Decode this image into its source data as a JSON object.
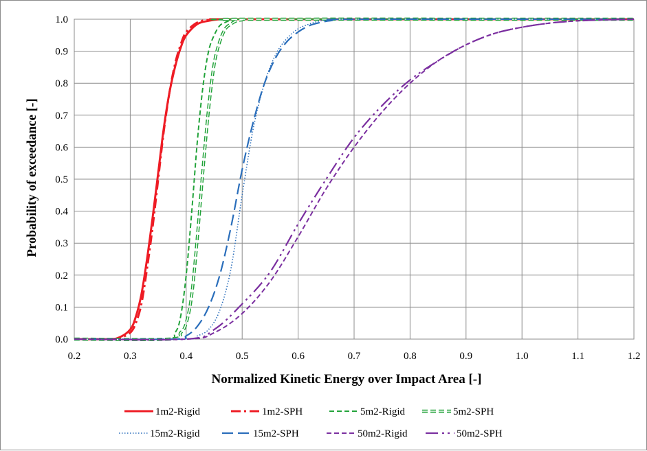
{
  "chart_data": {
    "type": "line",
    "title": "",
    "xlabel": "Normalized Kinetic Energy over Impact Area [-]",
    "ylabel": "Probability of exceedance [-]",
    "xlim": [
      0.2,
      1.2
    ],
    "ylim": [
      0.0,
      1.0
    ],
    "x_ticks": [
      "0.2",
      "0.3",
      "0.4",
      "0.5",
      "0.6",
      "0.7",
      "0.8",
      "0.9",
      "1.0",
      "1.1",
      "1.2"
    ],
    "y_ticks": [
      "0.0",
      "0.1",
      "0.2",
      "0.3",
      "0.4",
      "0.5",
      "0.6",
      "0.7",
      "0.8",
      "0.9",
      "1.0"
    ],
    "grid": true,
    "legend_position": "bottom",
    "series": [
      {
        "name": "1m2-Rigid",
        "color": "#ee1c25",
        "style": "solid",
        "x": [
          0.2,
          0.26,
          0.28,
          0.3,
          0.31,
          0.32,
          0.33,
          0.34,
          0.35,
          0.36,
          0.37,
          0.38,
          0.39,
          0.4,
          0.42,
          0.44,
          0.46,
          0.48,
          0.5,
          1.2
        ],
        "y": [
          0.0,
          0.0,
          0.005,
          0.03,
          0.07,
          0.14,
          0.25,
          0.38,
          0.52,
          0.66,
          0.77,
          0.85,
          0.91,
          0.95,
          0.985,
          0.995,
          1.0,
          1.0,
          1.0,
          1.0
        ]
      },
      {
        "name": "1m2-SPH",
        "color": "#ee1c25",
        "style": "dashdot",
        "x": [
          0.2,
          0.26,
          0.28,
          0.3,
          0.31,
          0.32,
          0.33,
          0.34,
          0.35,
          0.36,
          0.37,
          0.38,
          0.39,
          0.4,
          0.42,
          0.44,
          0.46,
          0.48,
          0.5,
          1.2
        ],
        "y": [
          0.0,
          0.0,
          0.003,
          0.02,
          0.05,
          0.11,
          0.22,
          0.35,
          0.5,
          0.65,
          0.77,
          0.86,
          0.92,
          0.96,
          0.99,
          0.998,
          1.0,
          1.0,
          1.0,
          1.0
        ]
      },
      {
        "name": "5m2-Rigid",
        "color": "#22a33a",
        "style": "dashed",
        "x": [
          0.2,
          0.36,
          0.38,
          0.39,
          0.4,
          0.41,
          0.42,
          0.43,
          0.44,
          0.45,
          0.46,
          0.47,
          0.48,
          0.5,
          1.2
        ],
        "y": [
          0.0,
          0.0,
          0.02,
          0.07,
          0.2,
          0.4,
          0.62,
          0.79,
          0.9,
          0.95,
          0.98,
          0.99,
          0.997,
          1.0,
          1.0
        ]
      },
      {
        "name": "5m2-SPH",
        "color": "#22a33a",
        "style": "double",
        "x": [
          0.2,
          0.37,
          0.39,
          0.4,
          0.41,
          0.42,
          0.43,
          0.44,
          0.45,
          0.46,
          0.47,
          0.48,
          0.49,
          0.5,
          0.52,
          1.2
        ],
        "y": [
          0.0,
          0.0,
          0.02,
          0.05,
          0.14,
          0.32,
          0.53,
          0.72,
          0.86,
          0.93,
          0.97,
          0.985,
          0.995,
          0.998,
          1.0,
          1.0
        ]
      },
      {
        "name": "15m2-Rigid",
        "color": "#2a6ebb",
        "style": "dotted",
        "x": [
          0.2,
          0.4,
          0.42,
          0.44,
          0.46,
          0.48,
          0.5,
          0.52,
          0.54,
          0.56,
          0.58,
          0.6,
          0.62,
          0.64,
          0.66,
          0.7,
          1.2
        ],
        "y": [
          0.0,
          0.0,
          0.01,
          0.03,
          0.09,
          0.22,
          0.45,
          0.66,
          0.8,
          0.89,
          0.94,
          0.97,
          0.985,
          0.995,
          0.998,
          1.0,
          1.0
        ]
      },
      {
        "name": "15m2-SPH",
        "color": "#2a6ebb",
        "style": "longdash",
        "x": [
          0.2,
          0.38,
          0.4,
          0.42,
          0.44,
          0.46,
          0.48,
          0.5,
          0.52,
          0.54,
          0.56,
          0.58,
          0.6,
          0.62,
          0.64,
          0.66,
          0.7,
          1.2
        ],
        "y": [
          0.0,
          0.0,
          0.01,
          0.04,
          0.1,
          0.2,
          0.35,
          0.53,
          0.68,
          0.8,
          0.88,
          0.93,
          0.96,
          0.98,
          0.99,
          0.996,
          1.0,
          1.0
        ]
      },
      {
        "name": "50m2-Rigid",
        "color": "#7b2fa0",
        "style": "dashed",
        "x": [
          0.2,
          0.4,
          0.45,
          0.5,
          0.55,
          0.6,
          0.65,
          0.7,
          0.75,
          0.8,
          0.85,
          0.9,
          0.95,
          1.0,
          1.05,
          1.1,
          1.15,
          1.2
        ],
        "y": [
          0.0,
          0.0,
          0.02,
          0.08,
          0.18,
          0.32,
          0.47,
          0.6,
          0.71,
          0.8,
          0.87,
          0.92,
          0.955,
          0.975,
          0.988,
          0.995,
          0.998,
          1.0
        ]
      },
      {
        "name": "50m2-SPH",
        "color": "#7b2fa0",
        "style": "dashdotdot",
        "x": [
          0.2,
          0.4,
          0.45,
          0.5,
          0.55,
          0.6,
          0.65,
          0.7,
          0.75,
          0.8,
          0.85,
          0.9,
          0.95,
          1.0,
          1.05,
          1.1,
          1.15,
          1.2
        ],
        "y": [
          0.0,
          0.0,
          0.03,
          0.11,
          0.21,
          0.36,
          0.5,
          0.63,
          0.73,
          0.81,
          0.87,
          0.92,
          0.955,
          0.975,
          0.988,
          0.995,
          0.998,
          1.0
        ]
      }
    ]
  }
}
